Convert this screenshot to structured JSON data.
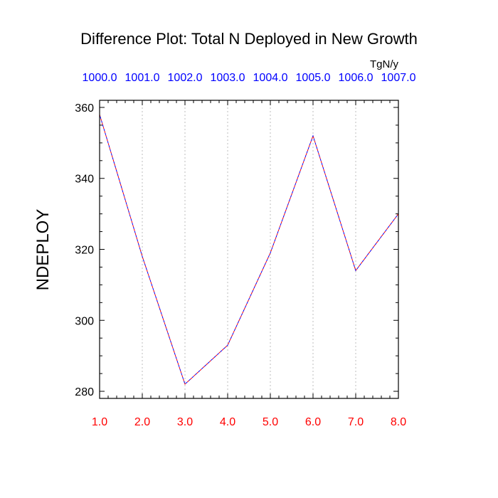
{
  "chart_data": {
    "type": "line",
    "title": "Difference Plot: Total N Deployed in New Growth",
    "units": "TgN/y",
    "ylabel": "NDEPLOY",
    "xlim": [
      1.0,
      8.0
    ],
    "ylim": [
      278,
      362
    ],
    "yticks": [
      280,
      300,
      320,
      340,
      360
    ],
    "yticks_labels": [
      "280",
      "300",
      "320",
      "340",
      "360"
    ],
    "x_bottom_ticks": [
      1,
      2,
      3,
      4,
      5,
      6,
      7,
      8
    ],
    "x_bottom_labels": [
      "1.0",
      "2.0",
      "3.0",
      "4.0",
      "5.0",
      "6.0",
      "7.0",
      "8.0"
    ],
    "x_top_labels": [
      "1000.0",
      "1001.0",
      "1002.0",
      "1003.0",
      "1004.0",
      "1005.0",
      "1006.0",
      "1007.0"
    ],
    "grid": "vertical dotted",
    "series": [
      {
        "x": [
          1,
          2,
          3,
          4,
          5,
          6,
          7,
          8
        ],
        "y": [
          358,
          318,
          282,
          293,
          319,
          352,
          314,
          330
        ],
        "color_a": "#ff0000",
        "color_b": "#0000ff"
      }
    ],
    "colors": {
      "bottom_axis_labels": "#ff0000",
      "top_axis_labels": "#0000ff",
      "grid": "#bdbdbd"
    }
  }
}
